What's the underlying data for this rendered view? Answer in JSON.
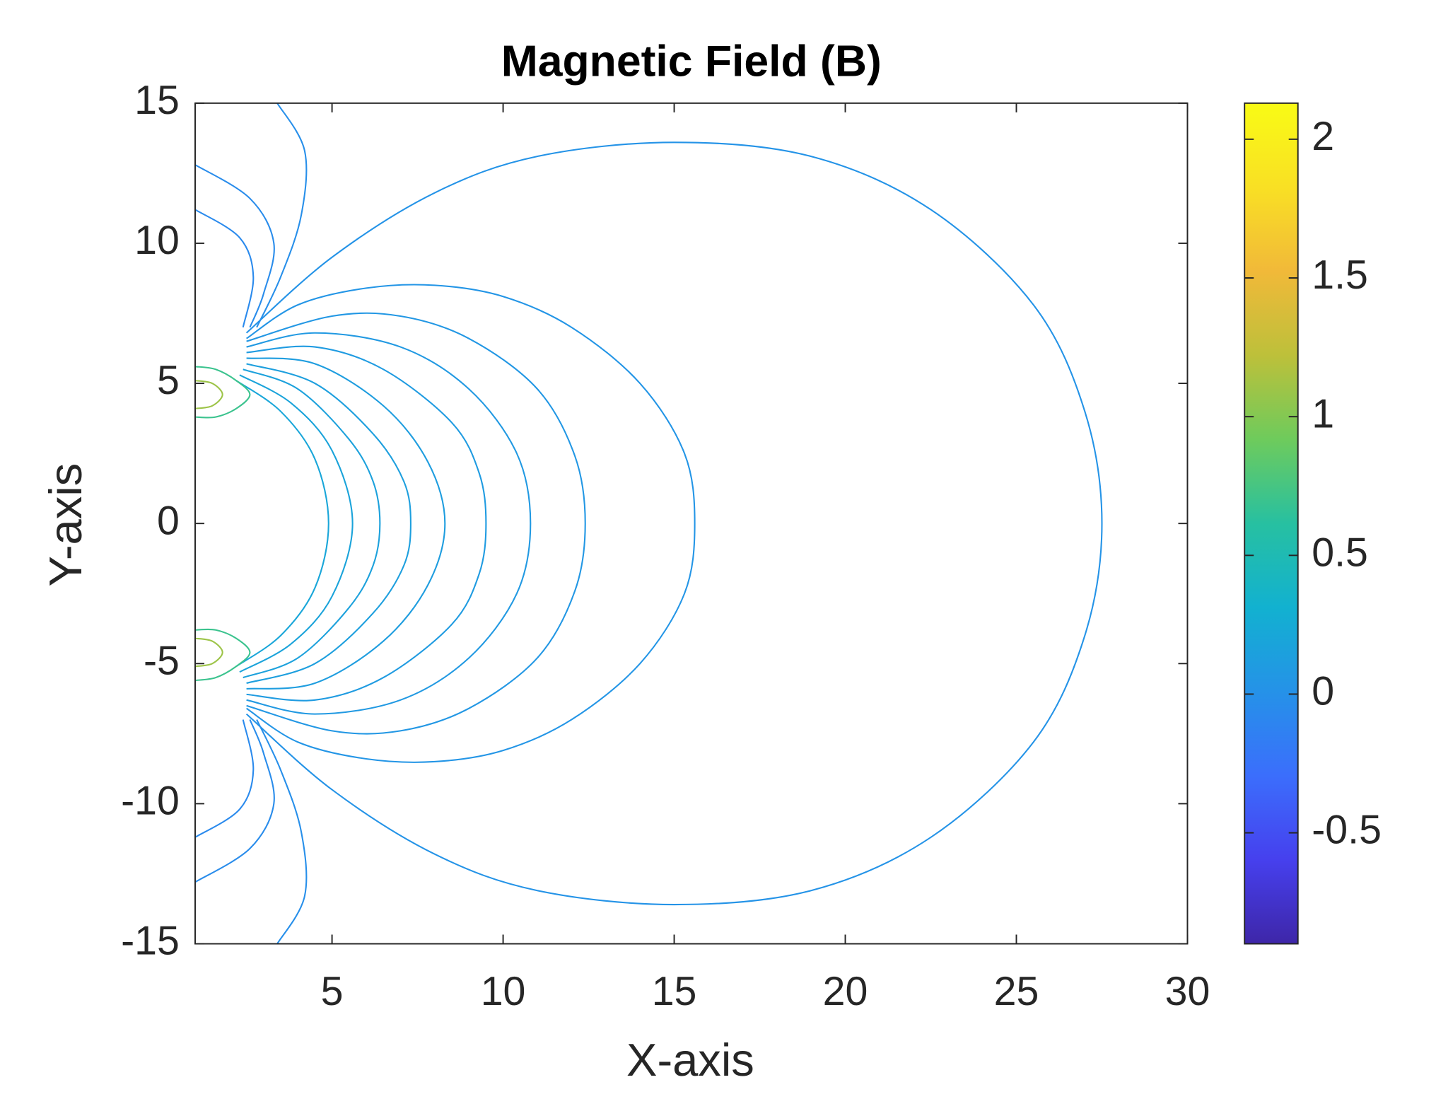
{
  "chart_data": {
    "type": "contour",
    "title": "Magnetic Field (B)",
    "xlabel": "X-axis",
    "ylabel": "Y-axis",
    "xlim": [
      1,
      30
    ],
    "xticks": [
      5,
      10,
      15,
      20,
      25,
      30
    ],
    "ylim": [
      -15,
      15
    ],
    "yticks": [
      -15,
      -10,
      -5,
      0,
      5,
      10,
      15
    ],
    "colorbar": {
      "clim": [
        -0.9,
        2.13
      ],
      "ticks": [
        -0.5,
        0,
        0.5,
        1,
        1.5,
        2
      ],
      "colormap": [
        "#3e26a8",
        "#4640ee",
        "#3b6efc",
        "#2592e8",
        "#12b1d0",
        "#27c0a1",
        "#6ecb5c",
        "#bdc03a",
        "#f1b939",
        "#f9e024",
        "#f9fb15"
      ]
    },
    "contours": [
      {
        "level": 0.02,
        "x": [
          2.5,
          5,
          8,
          11,
          15,
          19,
          22.5,
          25.5,
          27,
          27.5,
          27,
          25.5,
          22.5,
          19,
          15,
          11,
          8,
          5,
          2.5
        ],
        "y": [
          6.8,
          9.5,
          11.8,
          13.1,
          13.6,
          13.1,
          11.2,
          7.8,
          4,
          0,
          -4,
          -7.8,
          -11.2,
          -13.1,
          -13.6,
          -13.1,
          -11.8,
          -9.5,
          -6.8
        ]
      },
      {
        "level": 0.04,
        "x": [
          2.5,
          4,
          6,
          8,
          10,
          12,
          14,
          15.3,
          15.6,
          15.3,
          14,
          12,
          10,
          8,
          6,
          4,
          2.5
        ],
        "y": [
          6.6,
          7.8,
          8.4,
          8.5,
          8.1,
          7,
          5,
          2.5,
          0,
          -2.5,
          -5,
          -7,
          -8.1,
          -8.5,
          -8.4,
          -7.8,
          -6.6
        ]
      },
      {
        "level": 0.06,
        "x": [
          2.5,
          5,
          7,
          9,
          11,
          12.1,
          12.4,
          12.1,
          11,
          9,
          7,
          5,
          2.5
        ],
        "y": [
          6.5,
          7.4,
          7.4,
          6.6,
          4.8,
          2.4,
          0,
          -2.4,
          -4.8,
          -6.6,
          -7.4,
          -7.4,
          -6.5
        ]
      },
      {
        "level": 0.08,
        "x": [
          2.5,
          4.5,
          7,
          9,
          10.4,
          10.8,
          10.4,
          9,
          7,
          4.5,
          2.5
        ],
        "y": [
          6.3,
          6.8,
          6.3,
          4.8,
          2.5,
          0,
          -2.5,
          -4.8,
          -6.3,
          -6.8,
          -6.3
        ]
      },
      {
        "level": 0.1,
        "x": [
          2.5,
          4.5,
          6.5,
          8.5,
          9.3,
          9.5,
          9.3,
          8.5,
          6.5,
          4.5,
          2.5
        ],
        "y": [
          6.1,
          6.3,
          5.5,
          3.6,
          1.8,
          0,
          -1.8,
          -3.6,
          -5.5,
          -6.3,
          -6.1
        ]
      },
      {
        "level": 0.12,
        "x": [
          2.5,
          4.5,
          6.5,
          7.8,
          8.3,
          7.8,
          6.5,
          4.5,
          2.5
        ],
        "y": [
          5.9,
          5.7,
          4.2,
          2.2,
          0,
          -2.2,
          -4.2,
          -5.7,
          -5.9
        ]
      },
      {
        "level": 0.14,
        "x": [
          2.5,
          4.5,
          6.2,
          7.1,
          7.3,
          7.1,
          6.2,
          4.5,
          2.5
        ],
        "y": [
          5.7,
          5,
          3.2,
          1.5,
          0,
          -1.5,
          -3.2,
          -5,
          -5.7
        ]
      },
      {
        "level": 0.16,
        "x": [
          2.4,
          4,
          5.5,
          6.2,
          6.4,
          6.2,
          5.5,
          4,
          2.4
        ],
        "y": [
          5.5,
          4.8,
          3,
          1.5,
          0,
          -1.5,
          -3,
          -4.8,
          -5.5
        ]
      },
      {
        "level": 0.18,
        "x": [
          2.3,
          3.8,
          5,
          5.6,
          5,
          3.8,
          2.3
        ],
        "y": [
          5.3,
          4.3,
          2.6,
          0,
          -2.6,
          -4.3,
          -5.3
        ]
      },
      {
        "level": 0.2,
        "x": [
          2.2,
          3.5,
          4.5,
          4.9,
          4.5,
          3.5,
          2.2
        ],
        "y": [
          5.1,
          4,
          2.3,
          0,
          -2.3,
          -4,
          -5.1
        ]
      },
      {
        "level": -0.02,
        "x": [
          3.4,
          4.2,
          4.1,
          3.5,
          2.8
        ],
        "y": [
          15,
          13.3,
          11,
          8.8,
          7
        ]
      },
      {
        "level": -0.04,
        "x": [
          1,
          2.6,
          3.3,
          3,
          2.6
        ],
        "y": [
          12.8,
          11.6,
          10,
          8.2,
          7
        ]
      },
      {
        "level": -0.06,
        "x": [
          1,
          2.3,
          2.7,
          2.4
        ],
        "y": [
          11.2,
          10.2,
          8.8,
          7
        ]
      },
      {
        "level": -0.02,
        "x": [
          3.4,
          4.2,
          4.1,
          3.5,
          2.8
        ],
        "y": [
          -15,
          -13.3,
          -11,
          -8.8,
          -7
        ]
      },
      {
        "level": -0.04,
        "x": [
          1,
          2.6,
          3.3,
          3,
          2.6
        ],
        "y": [
          -12.8,
          -11.6,
          -10,
          -8.2,
          -7
        ]
      },
      {
        "level": -0.06,
        "x": [
          1,
          2.3,
          2.7,
          2.4
        ],
        "y": [
          -11.2,
          -10.2,
          -8.8,
          -7
        ]
      },
      {
        "level": 0.7,
        "x": [
          1,
          1.6,
          2.2,
          2.6,
          2.2,
          1.6,
          1
        ],
        "y": [
          5.6,
          5.5,
          5.1,
          4.6,
          4.1,
          3.8,
          3.8
        ]
      },
      {
        "level": 1.1,
        "x": [
          1,
          1.5,
          1.8,
          1.5,
          1
        ],
        "y": [
          5.1,
          5,
          4.6,
          4.2,
          4.1
        ]
      },
      {
        "level": 0.7,
        "x": [
          1,
          1.6,
          2.2,
          2.6,
          2.2,
          1.6,
          1
        ],
        "y": [
          -5.6,
          -5.5,
          -5.1,
          -4.6,
          -4.1,
          -3.8,
          -3.8
        ]
      },
      {
        "level": 1.1,
        "x": [
          1,
          1.5,
          1.8,
          1.5,
          1
        ],
        "y": [
          -5.1,
          -5,
          -4.6,
          -4.2,
          -4.1
        ]
      }
    ]
  }
}
